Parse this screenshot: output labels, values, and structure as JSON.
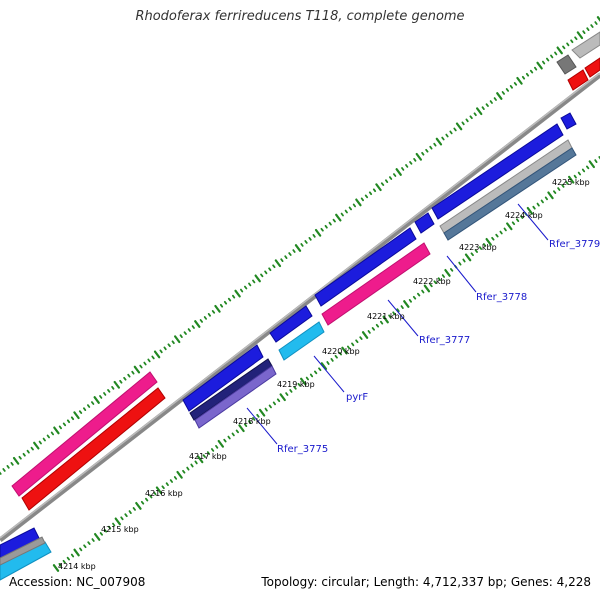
{
  "title": "Rhodoferax ferrireducens T118, complete genome",
  "footer": {
    "accession": "Accession: NC_007908",
    "topology": "Topology: circular; Length: 4,712,337 bp; Genes: 4,228"
  },
  "scale_labels": [
    "4214 kbp",
    "4215 kbp",
    "4216 kbp",
    "4217 kbp",
    "4218 kbp",
    "4219 kbp",
    "4220 kbp",
    "4221 kbp",
    "4222 kbp",
    "4223 kbp",
    "4224 kbp",
    "4225 kbp"
  ],
  "gene_labels": [
    "Rfer_3775",
    "pyrF",
    "Rfer_3777",
    "Rfer_3778",
    "Rfer_3779"
  ],
  "colors": {
    "forward_cds": "#1c1cdd",
    "reverse_cds": "#ee1c8c",
    "orf": "#ee1111",
    "rna": "#22bbee",
    "dark_cds": "#22227a",
    "light_cds": "#7a66cc",
    "gray_feature": "#9a9a9a",
    "backbone": "#777777",
    "ticks": "#228822",
    "label_text": "#1a1acc"
  }
}
